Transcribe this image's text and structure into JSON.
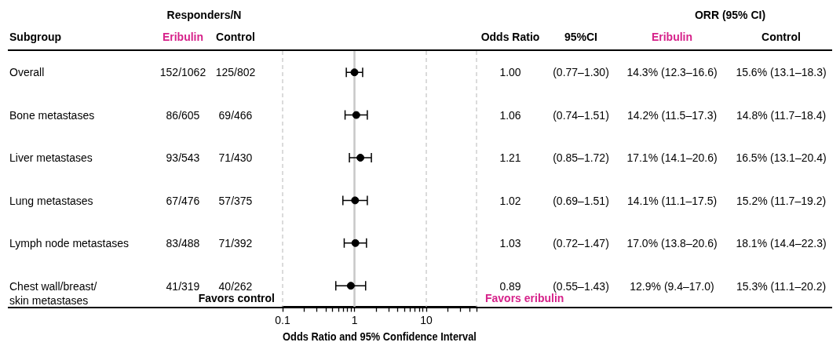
{
  "chart_data": [
    {
      "type": "other",
      "title": "Subgroup",
      "annotations": [
        "Overall",
        "Bone metastases",
        "Liver metastases",
        "Lung metastases",
        "Lymph node metastases",
        "Chest wall/breast/\nskin metastases"
      ]
    },
    {
      "type": "scatter",
      "orientation": "horizontal",
      "log": "x",
      "marker": "circle",
      "tick_labels": "x",
      "xlabel": "Odds Ratio and 95% Confidence Interval",
      "categories": [
        null,
        null,
        null,
        null,
        null,
        null
      ],
      "series": [
        {
          "color": "#000000",
          "values": [
            1.0,
            1.06,
            1.21,
            1.02,
            1.03,
            0.89
          ],
          "errors": [
            [
              0.77,
              1.3
            ],
            [
              0.74,
              1.51
            ],
            [
              0.85,
              1.72
            ],
            [
              0.69,
              1.51
            ],
            [
              0.72,
              1.47
            ],
            [
              0.55,
              1.43
            ]
          ]
        }
      ],
      "xlim": [
        0.1,
        50
      ],
      "xticks": [
        0.1,
        {
          "value": 0.2,
          "label": null
        },
        {
          "value": 0.3,
          "label": null
        },
        {
          "value": 0.4,
          "label": null
        },
        {
          "value": 0.5,
          "label": null
        },
        {
          "value": 0.6,
          "label": null
        },
        {
          "value": 0.7,
          "label": null
        },
        {
          "value": 0.8,
          "label": null
        },
        {
          "value": 0.9,
          "label": null
        },
        1,
        {
          "value": 2,
          "label": null
        },
        {
          "value": 3,
          "label": null
        },
        {
          "value": 4,
          "label": null
        },
        {
          "value": 5,
          "label": null
        },
        {
          "value": 6,
          "label": null
        },
        {
          "value": 7,
          "label": null
        },
        {
          "value": 8,
          "label": null
        },
        {
          "value": 9,
          "label": null
        },
        10,
        {
          "value": 20,
          "label": null
        },
        {
          "value": 30,
          "label": null
        },
        {
          "value": 40,
          "label": null
        },
        {
          "value": 50,
          "label": null
        }
      ],
      "ref_lines": [
        {
          "axis": "x",
          "value": 1,
          "color": "#c8c8c8",
          "line_style": "solid"
        },
        {
          "axis": "x",
          "value": 0.1,
          "color": "#c8c8c8",
          "line_style": "dashed"
        },
        {
          "axis": "x",
          "value": 10,
          "color": "#c8c8c8",
          "line_style": "dashed"
        },
        {
          "axis": "x",
          "value": 50,
          "color": "#c8c8c8",
          "line_style": "dashed"
        }
      ],
      "annotations": [
        "Favors control",
        "Favors eribulin"
      ]
    },
    {
      "type": "other",
      "title": "Responders/N"
    },
    {
      "type": "other",
      "title": "Eribulin",
      "annotations": [
        "152/1062",
        "86/605",
        "93/543",
        "67/476",
        "83/488",
        "41/319"
      ]
    },
    {
      "type": "other",
      "title": "Control",
      "annotations": [
        "125/802",
        "69/466",
        "71/430",
        "57/375",
        "71/392",
        "40/262"
      ]
    },
    {
      "type": "other",
      "title": "Odds Ratio",
      "annotations": [
        "1.00",
        "1.06",
        "1.21",
        "1.02",
        "1.03",
        "0.89"
      ]
    },
    {
      "type": "other",
      "title": "95%CI",
      "annotations": [
        "(0.77–1.30)",
        "(0.74–1.51)",
        "(0.85–1.72)",
        "(0.69–1.51)",
        "(0.72–1.47)",
        "(0.55–1.43)"
      ]
    },
    {
      "type": "other",
      "title": "ORR (95% CI)"
    },
    {
      "type": "other",
      "title": "Eribulin",
      "annotations": [
        "14.3% (12.3–16.6)",
        "14.2% (11.5–17.3)",
        "17.1% (14.1–20.6)",
        "14.1% (11.1–17.5)",
        "17.0% (13.8–20.6)",
        "12.9% (9.4–17.0)"
      ]
    },
    {
      "type": "other",
      "title": "Control",
      "annotations": [
        "15.6% (13.1–18.3)",
        "14.8% (11.7–18.4)",
        "16.5% (13.1–20.4)",
        "15.2% (11.7–19.2)",
        "18.1% (14.4–22.3)",
        "15.3% (11.1–20.2)"
      ]
    }
  ]
}
